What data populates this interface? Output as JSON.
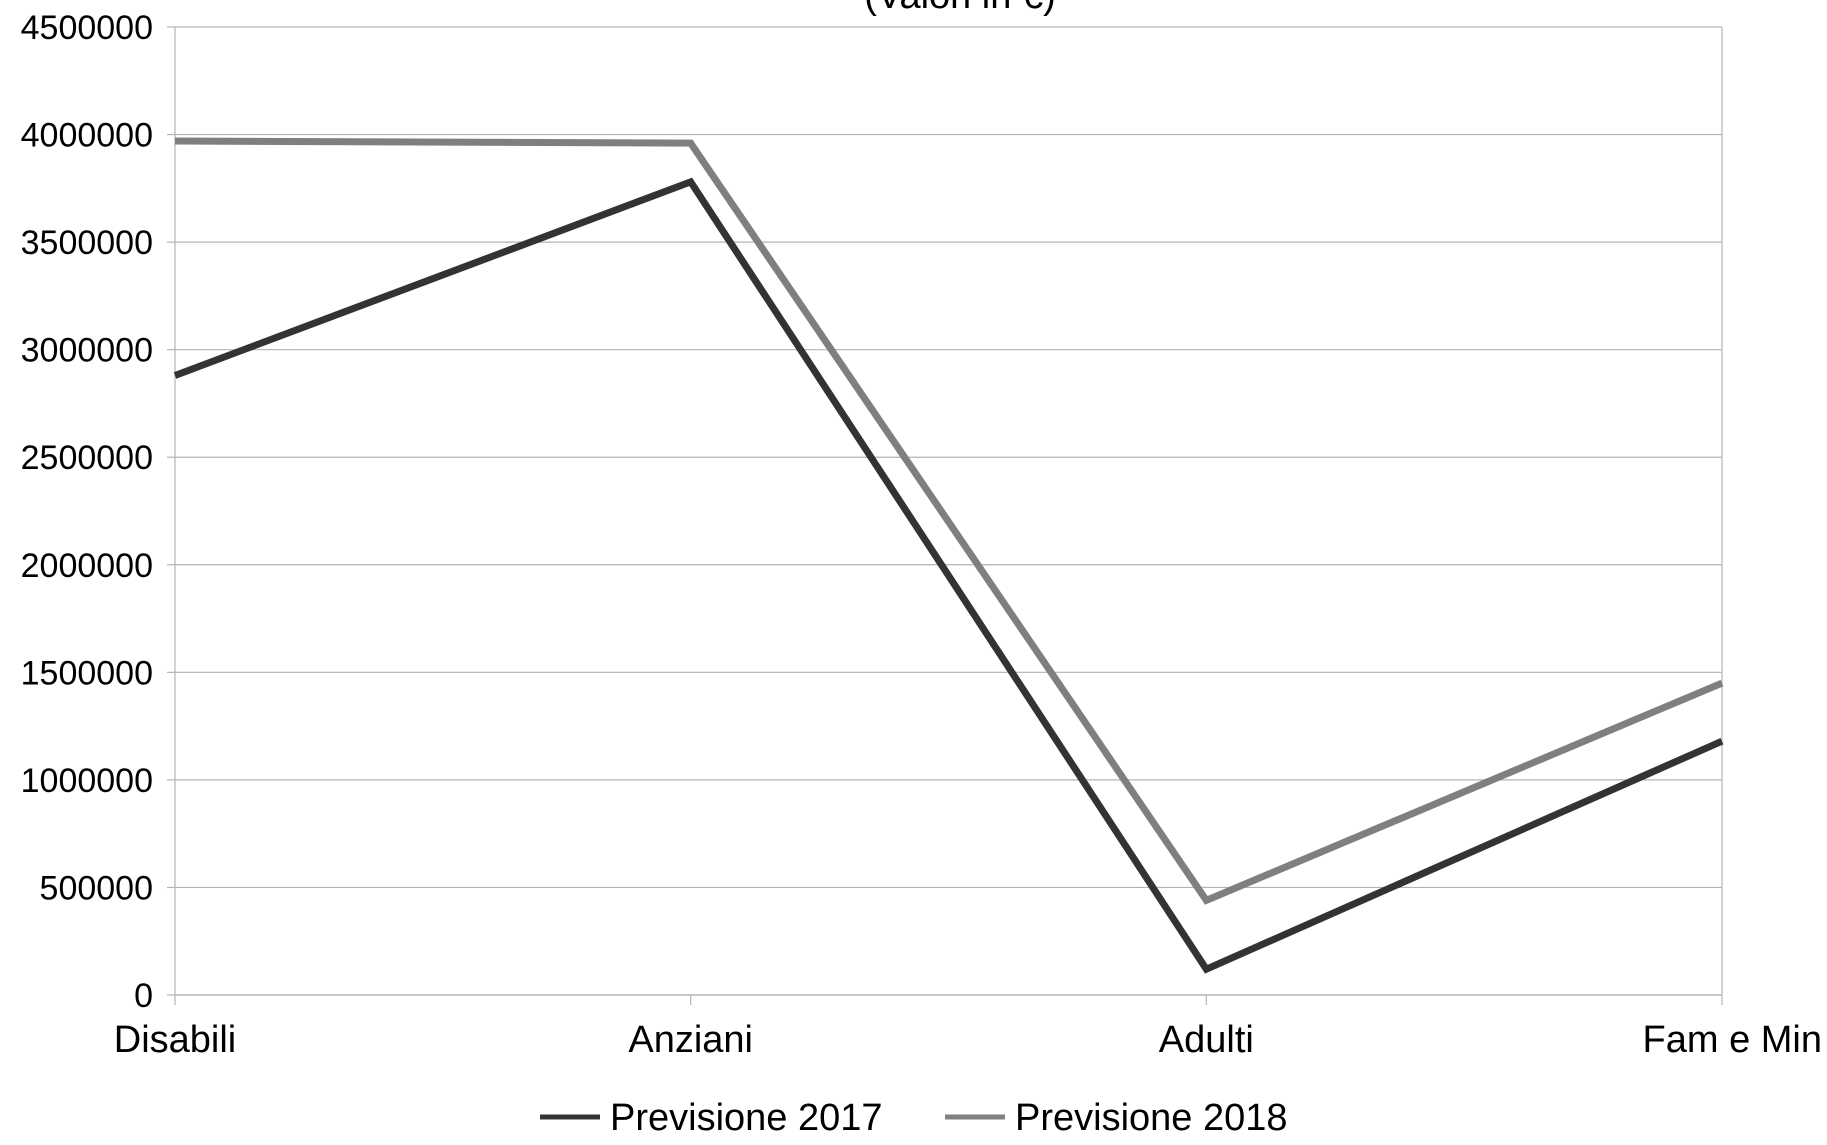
{
  "chart_data": {
    "type": "line",
    "title": "(Valori in €)",
    "xlabel": "",
    "ylabel": "",
    "categories": [
      "Disabili",
      "Anziani",
      "Adulti",
      "Fam e Min"
    ],
    "ylim": [
      0,
      4500000
    ],
    "yticks": [
      0,
      500000,
      1000000,
      1500000,
      2000000,
      2500000,
      3000000,
      3500000,
      4000000,
      4500000
    ],
    "grid": true,
    "legend_position": "bottom",
    "series": [
      {
        "name": "Previsione 2017",
        "color": "#333333",
        "values": [
          2880000,
          3780000,
          120000,
          1180000
        ]
      },
      {
        "name": "Previsione 2018",
        "color": "#7f7f7f",
        "values": [
          3970000,
          3960000,
          440000,
          1450000
        ]
      }
    ]
  }
}
